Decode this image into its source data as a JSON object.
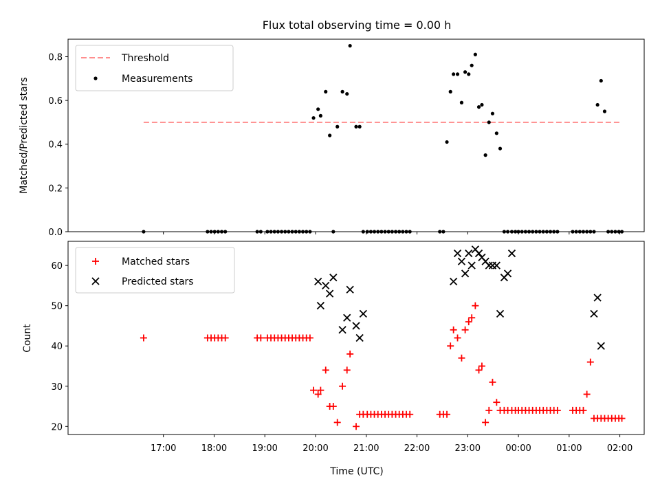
{
  "chart_data": [
    {
      "type": "scatter",
      "title": "Flux total observing time = 0.00 h",
      "xlabel": "",
      "ylabel": "Matched/Predicted stars",
      "x_unit": "hours since 16:00 UTC",
      "ylim": [
        0,
        0.88
      ],
      "yticks": [
        "0.0",
        "0.2",
        "0.4",
        "0.6",
        "0.8"
      ],
      "legend": {
        "position": "top-left",
        "entries": [
          {
            "key": "threshold",
            "label": "Threshold"
          },
          {
            "key": "measurements",
            "label": "Measurements"
          }
        ]
      },
      "threshold": {
        "x_start": 0.61,
        "x_end": 10.0,
        "y": 0.5,
        "color": "#ff7f7f"
      },
      "measurements": {
        "color": "#000000",
        "x": [
          0.61,
          1.87,
          1.94,
          2.01,
          2.08,
          2.15,
          2.22,
          2.85,
          2.92,
          3.05,
          3.12,
          3.19,
          3.26,
          3.33,
          3.4,
          3.47,
          3.54,
          3.61,
          3.68,
          3.75,
          3.82,
          3.89,
          3.96,
          4.05,
          4.1,
          4.2,
          4.28,
          4.35,
          4.43,
          4.53,
          4.62,
          4.68,
          4.8,
          4.87,
          4.94,
          5.02,
          5.09,
          5.16,
          5.23,
          5.3,
          5.37,
          5.44,
          5.51,
          5.58,
          5.65,
          5.72,
          5.79,
          5.86,
          6.45,
          6.52,
          6.59,
          6.66,
          6.72,
          6.8,
          6.88,
          6.95,
          7.02,
          7.08,
          7.15,
          7.22,
          7.28,
          7.35,
          7.42,
          7.49,
          7.57,
          7.64,
          7.72,
          7.79,
          7.87,
          7.94,
          8.0,
          8.07,
          8.14,
          8.21,
          8.28,
          8.35,
          8.42,
          8.49,
          8.56,
          8.63,
          8.7,
          8.77,
          9.07,
          9.14,
          9.21,
          9.28,
          9.35,
          9.42,
          9.49,
          9.56,
          9.63,
          9.7,
          9.77,
          9.84,
          9.91,
          9.98,
          10.04
        ],
        "y": [
          0.0,
          0.0,
          0.0,
          0.0,
          0.0,
          0.0,
          0.0,
          0.0,
          0.0,
          0.0,
          0.0,
          0.0,
          0.0,
          0.0,
          0.0,
          0.0,
          0.0,
          0.0,
          0.0,
          0.0,
          0.0,
          0.0,
          0.52,
          0.56,
          0.53,
          0.64,
          0.44,
          0.0,
          0.48,
          0.64,
          0.63,
          0.85,
          0.48,
          0.48,
          0.0,
          0.0,
          0.0,
          0.0,
          0.0,
          0.0,
          0.0,
          0.0,
          0.0,
          0.0,
          0.0,
          0.0,
          0.0,
          0.0,
          0.0,
          0.0,
          0.41,
          0.64,
          0.72,
          0.72,
          0.59,
          0.73,
          0.72,
          0.76,
          0.81,
          0.57,
          0.58,
          0.35,
          0.5,
          0.54,
          0.45,
          0.38,
          0.0,
          0.0,
          0.0,
          0.0,
          0.0,
          0.0,
          0.0,
          0.0,
          0.0,
          0.0,
          0.0,
          0.0,
          0.0,
          0.0,
          0.0,
          0.0,
          0.0,
          0.0,
          0.0,
          0.0,
          0.0,
          0.0,
          0.0,
          0.58,
          0.69,
          0.55,
          0.0,
          0.0,
          0.0,
          0.0,
          0.0
        ]
      }
    },
    {
      "type": "scatter",
      "title": "",
      "xlabel": "Time (UTC)",
      "ylabel": "Count",
      "x_unit": "hours since 16:00 UTC",
      "xlim": [
        -0.88,
        10.48
      ],
      "ylim": [
        18,
        66
      ],
      "yticks": [
        "20",
        "30",
        "40",
        "50",
        "60"
      ],
      "xticks": [
        {
          "value": 1,
          "label": "17:00"
        },
        {
          "value": 2,
          "label": "18:00"
        },
        {
          "value": 3,
          "label": "19:00"
        },
        {
          "value": 4,
          "label": "20:00"
        },
        {
          "value": 5,
          "label": "21:00"
        },
        {
          "value": 6,
          "label": "22:00"
        },
        {
          "value": 7,
          "label": "23:00"
        },
        {
          "value": 8,
          "label": "00:00"
        },
        {
          "value": 9,
          "label": "01:00"
        },
        {
          "value": 10,
          "label": "02:00"
        }
      ],
      "legend": {
        "position": "top-left",
        "entries": [
          {
            "key": "matched",
            "label": "Matched stars"
          },
          {
            "key": "predicted",
            "label": "Predicted stars"
          }
        ]
      },
      "series": [
        {
          "key": "matched",
          "name": "Matched stars",
          "marker": "plus",
          "color": "#ff0000",
          "x": [
            0.61,
            1.87,
            1.94,
            2.01,
            2.08,
            2.15,
            2.22,
            2.85,
            2.92,
            3.05,
            3.12,
            3.19,
            3.26,
            3.33,
            3.4,
            3.47,
            3.54,
            3.61,
            3.68,
            3.75,
            3.82,
            3.89,
            3.96,
            4.05,
            4.1,
            4.2,
            4.28,
            4.35,
            4.43,
            4.53,
            4.62,
            4.68,
            4.8,
            4.87,
            4.94,
            5.02,
            5.09,
            5.16,
            5.23,
            5.3,
            5.37,
            5.44,
            5.51,
            5.58,
            5.65,
            5.72,
            5.79,
            5.86,
            6.45,
            6.52,
            6.59,
            6.66,
            6.72,
            6.8,
            6.88,
            6.95,
            7.02,
            7.08,
            7.15,
            7.22,
            7.28,
            7.35,
            7.42,
            7.49,
            7.57,
            7.64,
            7.72,
            7.79,
            7.87,
            7.94,
            8.0,
            8.07,
            8.14,
            8.21,
            8.28,
            8.35,
            8.42,
            8.49,
            8.56,
            8.63,
            8.7,
            8.77,
            9.07,
            9.14,
            9.21,
            9.28,
            9.35,
            9.42,
            9.49,
            9.56,
            9.63,
            9.7,
            9.77,
            9.84,
            9.91,
            9.98,
            10.04
          ],
          "y": [
            42,
            42,
            42,
            42,
            42,
            42,
            42,
            42,
            42,
            42,
            42,
            42,
            42,
            42,
            42,
            42,
            42,
            42,
            42,
            42,
            42,
            42,
            29,
            28,
            29,
            34,
            25,
            25,
            21,
            30,
            34,
            38,
            20,
            23,
            23,
            23,
            23,
            23,
            23,
            23,
            23,
            23,
            23,
            23,
            23,
            23,
            23,
            23,
            23,
            23,
            23,
            40,
            44,
            42,
            37,
            44,
            46,
            47,
            50,
            34,
            35,
            21,
            24,
            31,
            26,
            24,
            24,
            24,
            24,
            24,
            24,
            24,
            24,
            24,
            24,
            24,
            24,
            24,
            24,
            24,
            24,
            24,
            24,
            24,
            24,
            24,
            28,
            36,
            22,
            22,
            22,
            22,
            22,
            22,
            22,
            22,
            22
          ]
        },
        {
          "key": "predicted",
          "name": "Predicted stars",
          "marker": "x",
          "color": "#000000",
          "x": [
            4.05,
            4.1,
            4.2,
            4.28,
            4.35,
            4.53,
            4.62,
            4.68,
            4.8,
            4.87,
            4.94,
            6.72,
            6.8,
            6.88,
            6.95,
            7.02,
            7.08,
            7.15,
            7.22,
            7.28,
            7.35,
            7.42,
            7.49,
            7.57,
            7.64,
            7.72,
            7.79,
            7.87,
            9.49,
            9.56,
            9.63
          ],
          "y": [
            56,
            50,
            55,
            53,
            57,
            44,
            47,
            54,
            45,
            42,
            48,
            56,
            63,
            61,
            58,
            63,
            60,
            64,
            63,
            62,
            61,
            60,
            60,
            60,
            48,
            57,
            58,
            63,
            48,
            52,
            40
          ]
        }
      ]
    }
  ]
}
